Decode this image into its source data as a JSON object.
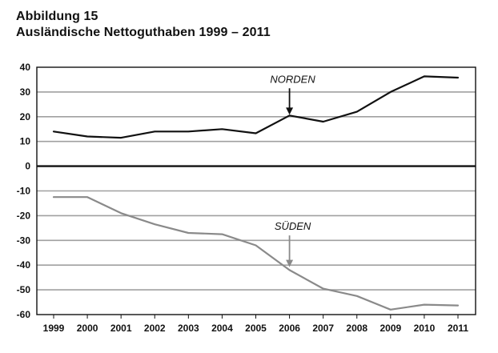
{
  "title": {
    "line1": "Abbildung 15",
    "line2": "Ausländische Nettoguthaben 1999 – 2011"
  },
  "chart_data": {
    "type": "line",
    "title": "Ausländische Nettoguthaben 1999 – 2011",
    "xlabel": "",
    "ylabel": "",
    "x": [
      "1999",
      "2000",
      "2001",
      "2002",
      "2003",
      "2004",
      "2005",
      "2006",
      "2007",
      "2008",
      "2009",
      "2010",
      "2011"
    ],
    "ylim": [
      -60,
      40
    ],
    "yticks": [
      40,
      30,
      20,
      10,
      0,
      -10,
      -20,
      -30,
      -40,
      -50,
      -60
    ],
    "grid": true,
    "series": [
      {
        "name": "NORDEN",
        "color": "#111111",
        "values": [
          14,
          12,
          11.5,
          14,
          14,
          15,
          13.3,
          20.5,
          18,
          22,
          30,
          36.3,
          35.8
        ]
      },
      {
        "name": "SÜDEN",
        "color": "#8a8a8a",
        "values": [
          -12.5,
          -12.5,
          -19,
          -23.5,
          -27,
          -27.5,
          -32,
          -42,
          -49.5,
          -52.5,
          -58,
          -56,
          -56.3
        ]
      }
    ],
    "annotations": [
      {
        "text": "NORDEN",
        "series": "NORDEN",
        "x": "2006",
        "arrow_from_y": 31.5,
        "arrow_to_y": 20.8
      },
      {
        "text": "SÜDEN",
        "series": "SÜDEN",
        "x": "2006",
        "arrow_from_y": -28,
        "arrow_to_y": -40.8
      }
    ],
    "colors": {
      "frame": "#111111",
      "grid": "#a0a0a0",
      "zero_line": "#111111"
    }
  }
}
